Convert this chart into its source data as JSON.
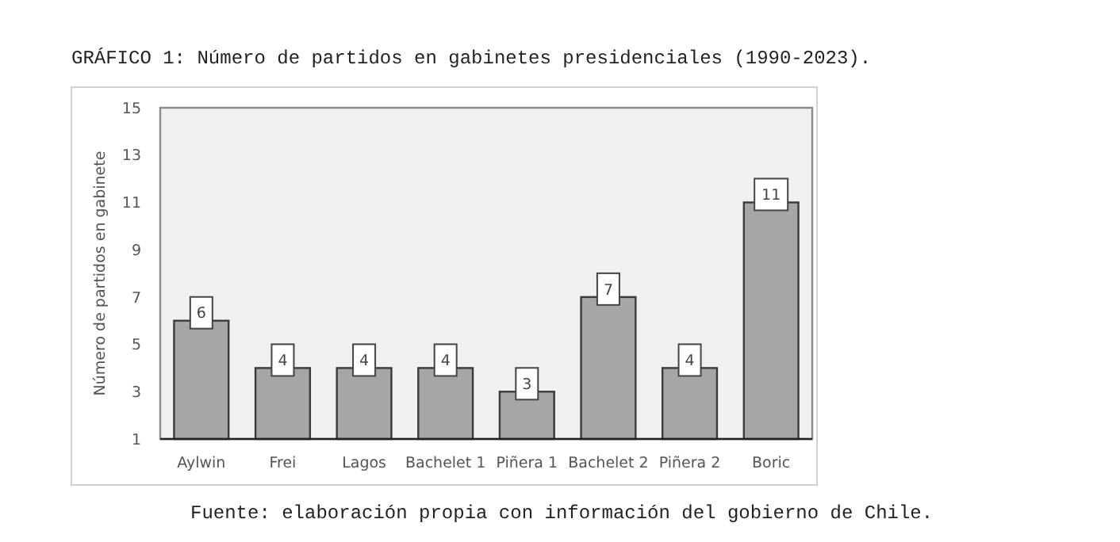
{
  "chart_data": {
    "type": "bar",
    "title": "GRÁFICO 1: Número de partidos en gabinetes presidenciales (1990-2023).",
    "ylabel": "Número de partidos en gabinete",
    "categories": [
      "Aylwin",
      "Frei",
      "Lagos",
      "Bachelet 1",
      "Piñera 1",
      "Bachelet 2",
      "Piñera 2",
      "Boric"
    ],
    "values": [
      6,
      4,
      4,
      4,
      3,
      7,
      4,
      11
    ],
    "color": "#a6a6a6",
    "ylim": [
      1,
      15
    ],
    "yticks": [
      1,
      3,
      5,
      7,
      9,
      11,
      13,
      15
    ],
    "grid": false,
    "data_labels": true,
    "annotations": [
      "Fuente: elaboración propia con información del gobierno de Chile."
    ]
  }
}
